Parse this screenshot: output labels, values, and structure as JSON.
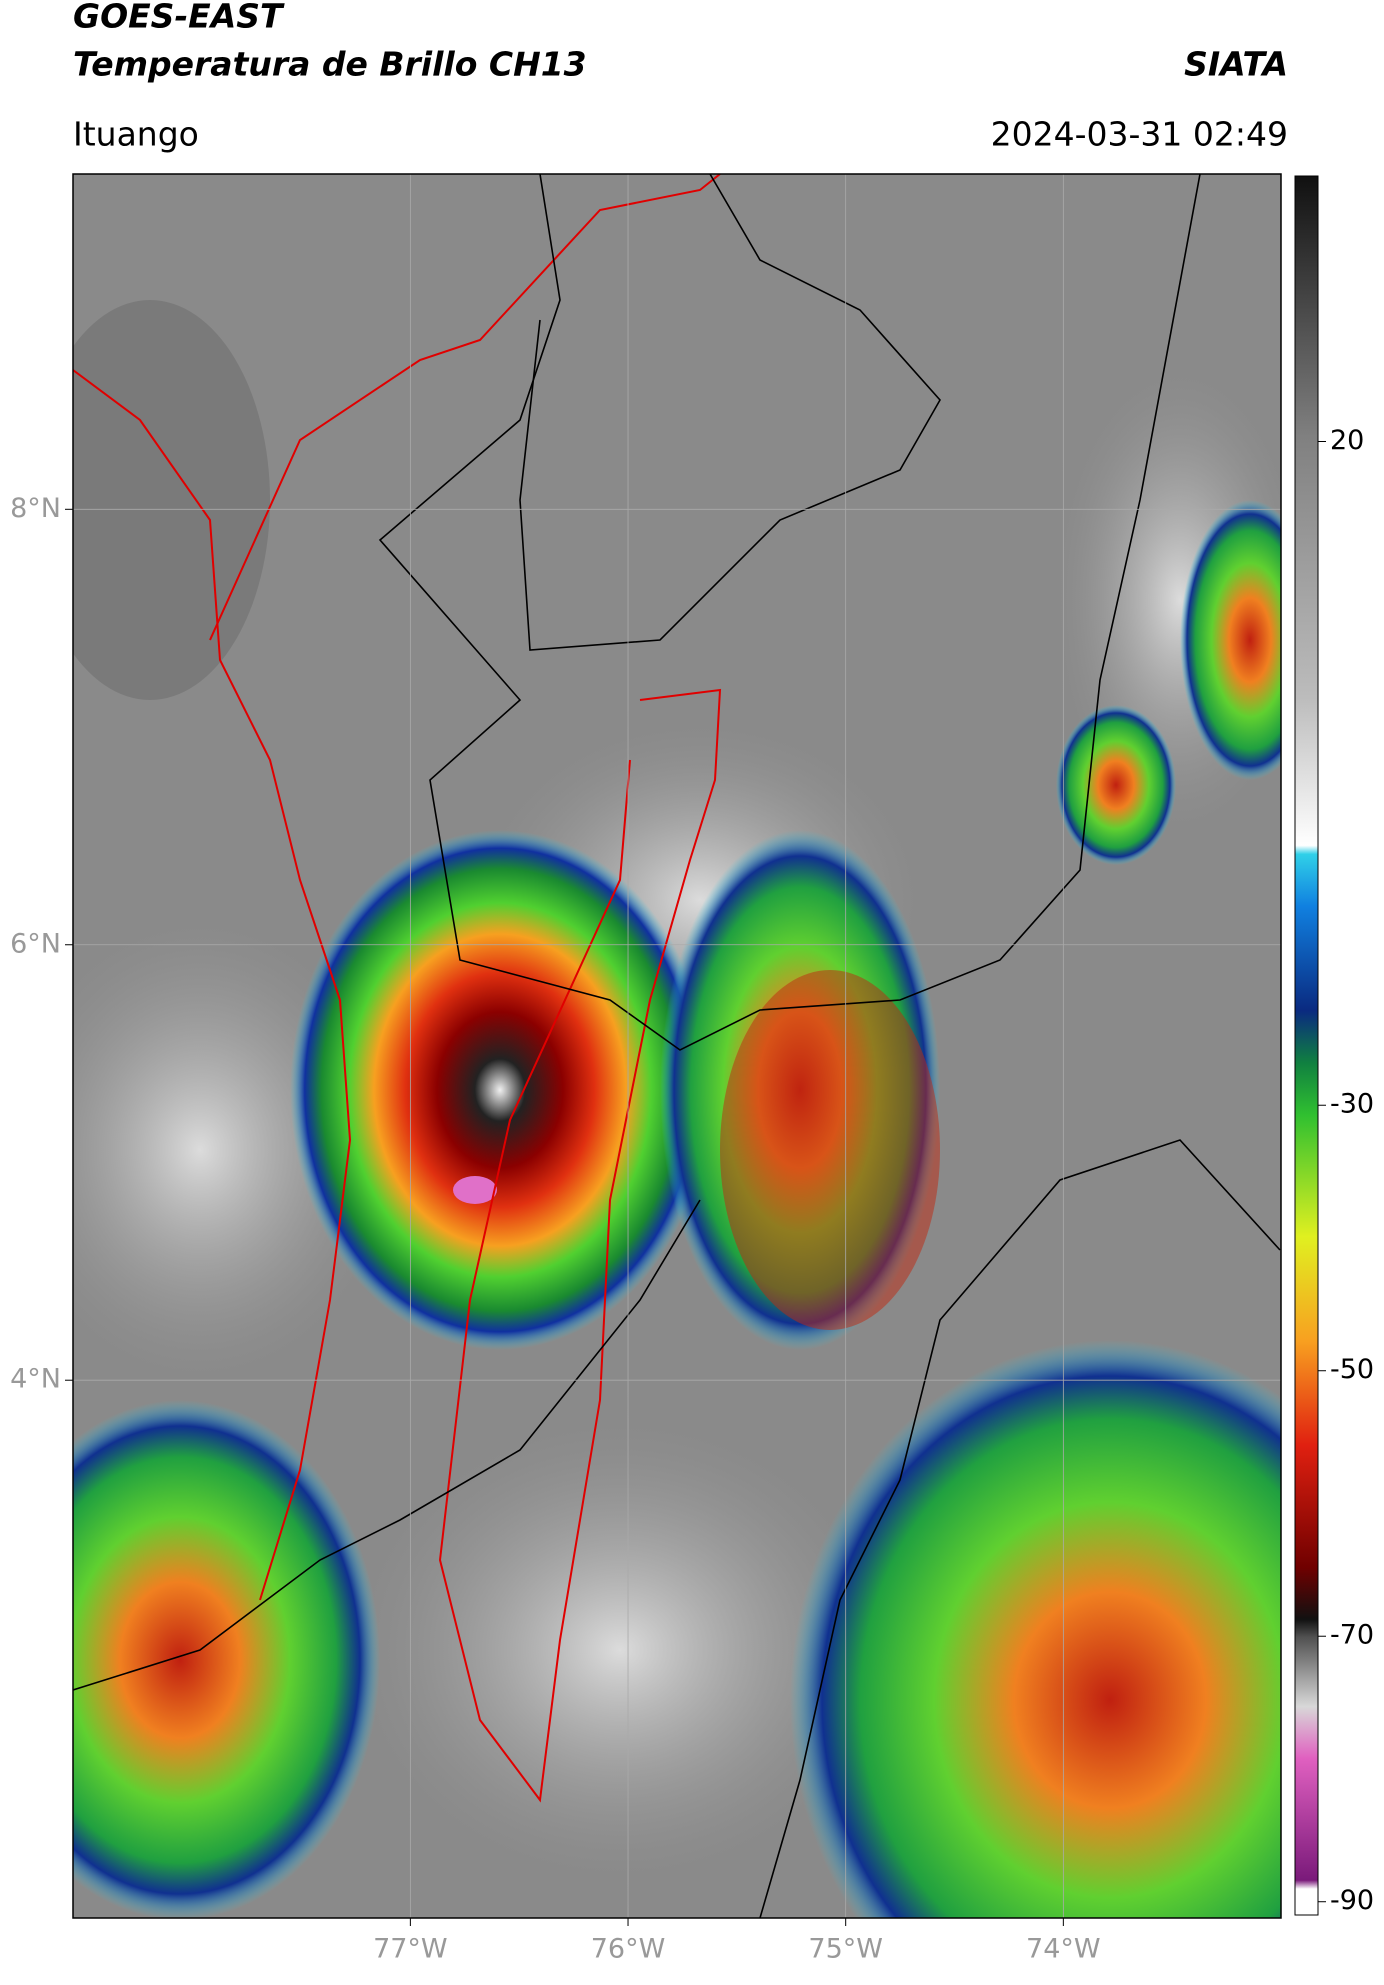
{
  "header": {
    "title": "GOES-EAST",
    "subtitle": "Temperatura de Brillo CH13",
    "agency": "SIATA",
    "location": "Ituango",
    "timestamp": "2024-03-31 02:49"
  },
  "map": {
    "xlim": [
      -78.55,
      -73.0
    ],
    "ylim": [
      1.53,
      9.54
    ],
    "lon_ticks": [
      {
        "value": -77,
        "label": "77°W"
      },
      {
        "value": -76,
        "label": "76°W"
      },
      {
        "value": -75,
        "label": "75°W"
      },
      {
        "value": -74,
        "label": "74°W"
      }
    ],
    "lat_ticks": [
      {
        "value": 8,
        "label": "8°N"
      },
      {
        "value": 6,
        "label": "6°N"
      },
      {
        "value": 4,
        "label": "4°N"
      }
    ],
    "grid": true
  },
  "colorbar": {
    "lim": [
      -91,
      40
    ],
    "ticks": [
      20,
      -30,
      -50,
      -70,
      -90
    ]
  }
}
